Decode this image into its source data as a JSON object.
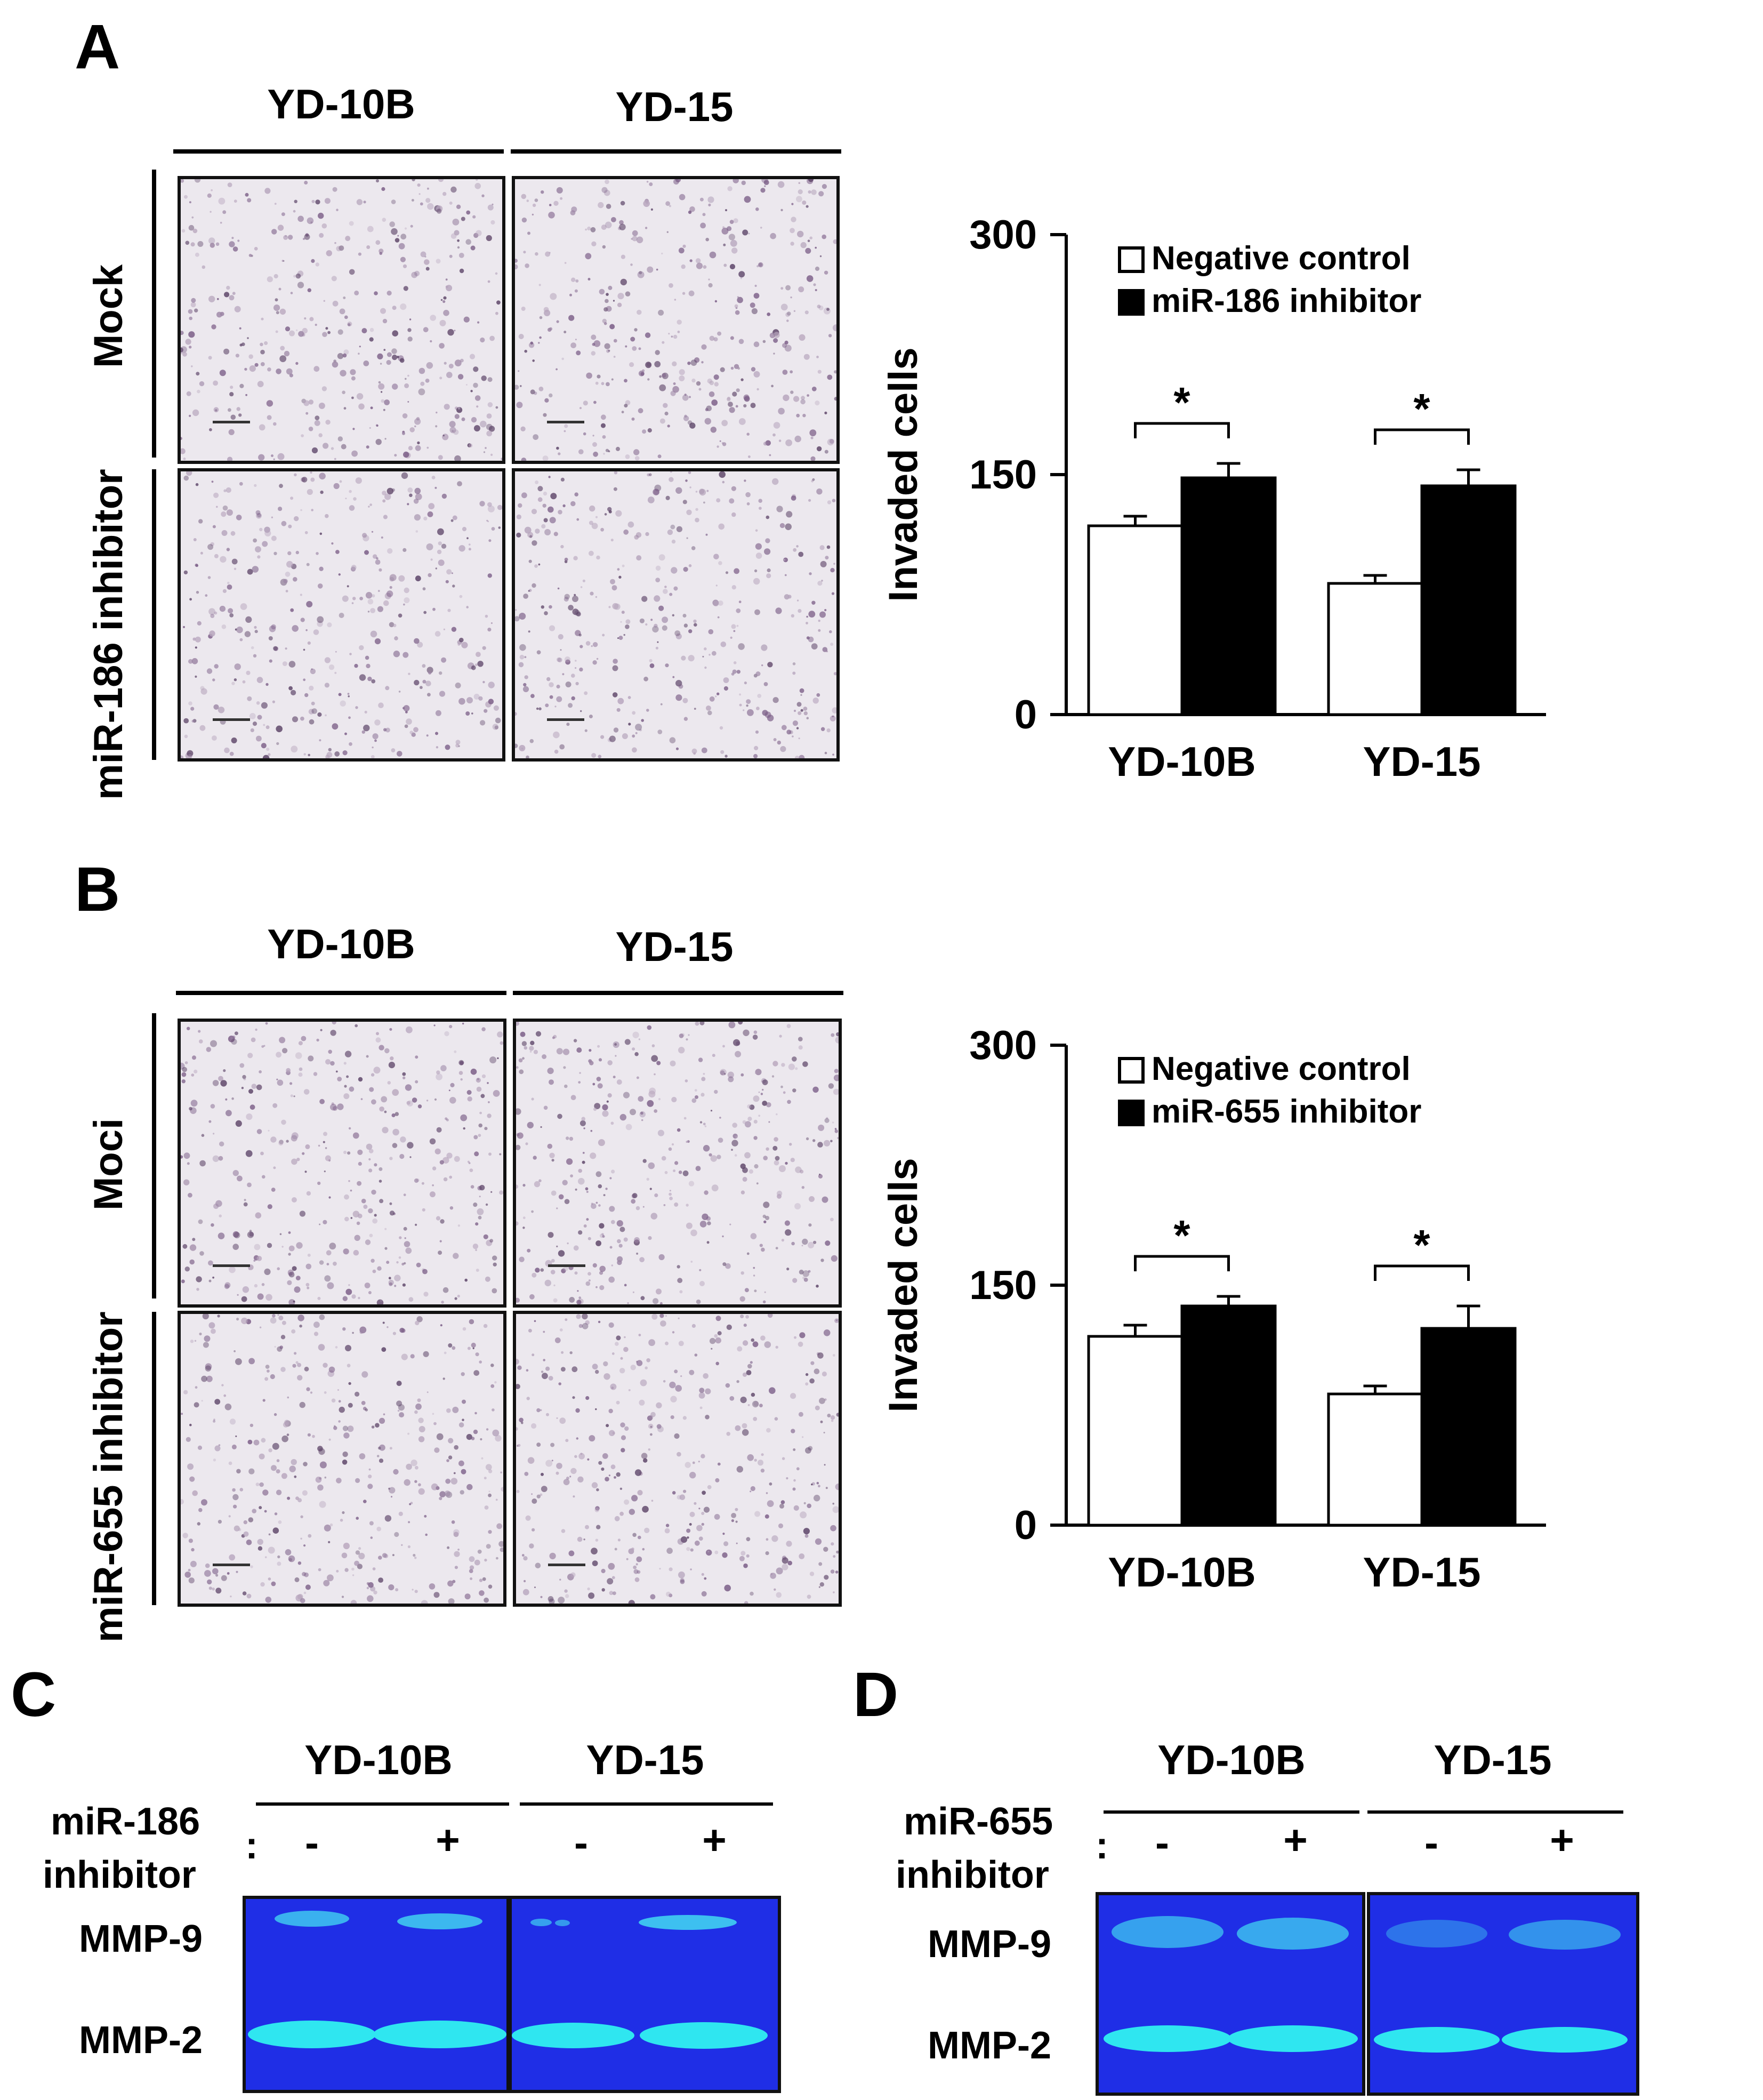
{
  "panels": {
    "A": {
      "letter": "A",
      "columns": [
        "YD-10B",
        "YD-15"
      ],
      "rows": [
        "Mock",
        "miR-186 inhibitor"
      ]
    },
    "B": {
      "letter": "B",
      "columns": [
        "YD-10B",
        "YD-15"
      ],
      "rows": [
        "Moci",
        "miR-655 inhibitor"
      ]
    },
    "C": {
      "letter": "C",
      "columns": [
        "YD-10B",
        "YD-15"
      ],
      "treatment_line1": "miR-186",
      "treatment_line2": "inhibitor",
      "colon": ":",
      "signs": [
        "-",
        "+",
        "-",
        "+"
      ],
      "bands": [
        "MMP-9",
        "MMP-2"
      ]
    },
    "D": {
      "letter": "D",
      "columns": [
        "YD-10B",
        "YD-15"
      ],
      "treatment_line1": "miR-655",
      "treatment_line2": "inhibitor",
      "colon": ":",
      "signs": [
        "-",
        "+",
        "-",
        "+"
      ],
      "bands": [
        "MMP-9",
        "MMP-2"
      ]
    }
  },
  "colors": {
    "gel_blue": "#1f2ee6",
    "band_cyan": "#2fe6f0",
    "bar_black": "#000000",
    "bar_white": "#ffffff"
  },
  "chart_data": [
    {
      "type": "bar",
      "ylabel": "Invaded cells",
      "ylim": [
        0,
        300
      ],
      "yticks": [
        0,
        150,
        300
      ],
      "categories": [
        "YD-10B",
        "YD-15"
      ],
      "series": [
        {
          "name": "Negative control",
          "values": [
            118,
            82
          ],
          "errors": [
            6,
            5
          ]
        },
        {
          "name": "miR-186 inhibitor",
          "values": [
            148,
            143
          ],
          "errors": [
            9,
            10
          ]
        }
      ],
      "significance": [
        "*",
        "*"
      ],
      "legend": "top-left"
    },
    {
      "type": "bar",
      "ylabel": "Invaded cells",
      "ylim": [
        0,
        300
      ],
      "yticks": [
        0,
        150,
        300
      ],
      "categories": [
        "YD-10B",
        "YD-15"
      ],
      "series": [
        {
          "name": "Negative control",
          "values": [
            118,
            82
          ],
          "errors": [
            7,
            5
          ]
        },
        {
          "name": "miR-655 inhibitor",
          "values": [
            137,
            123
          ],
          "errors": [
            6,
            14
          ]
        }
      ],
      "significance": [
        "*",
        "*"
      ],
      "legend": "top-left"
    }
  ]
}
